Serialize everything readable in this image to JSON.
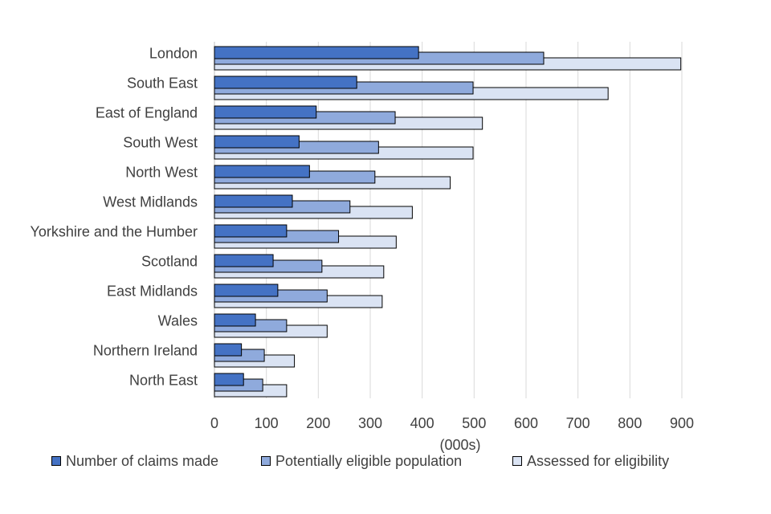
{
  "chart_data": {
    "type": "bar",
    "orientation": "horizontal",
    "categories": [
      "London",
      "South East",
      "East of England",
      "South West",
      "North West",
      "West Midlands",
      "Yorkshire and the Humber",
      "Scotland",
      "East Midlands",
      "Wales",
      "Northern Ireland",
      "North East"
    ],
    "series": [
      {
        "name": "Number of claims made",
        "color": "#4472C4",
        "values": [
          393,
          274,
          196,
          163,
          183,
          150,
          139,
          113,
          122,
          79,
          52,
          56
        ]
      },
      {
        "name": "Potentially eligible population",
        "color": "#8FAADC",
        "values": [
          634,
          498,
          348,
          316,
          309,
          261,
          239,
          207,
          217,
          139,
          96,
          93
        ]
      },
      {
        "name": "Assessed for eligibility",
        "color": "#DAE3F3",
        "values": [
          898,
          758,
          516,
          498,
          454,
          381,
          350,
          326,
          323,
          217,
          154,
          139
        ]
      }
    ],
    "xlabel": "(000s)",
    "ylabel": "",
    "xlim": [
      0,
      900
    ],
    "xticks": [
      0,
      100,
      200,
      300,
      400,
      500,
      600,
      700,
      800,
      900
    ],
    "grid": true,
    "legend_position": "bottom"
  }
}
